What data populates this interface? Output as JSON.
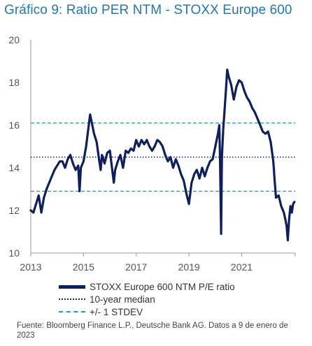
{
  "title": "Gráfico 9: Ratio PER NTM - STOXX Europe 600",
  "source_note": "Fuente: Bloomberg Finance L.P., Deutsche Bank AG. Datos a 9 de enero de 2023",
  "colors": {
    "title": "#1f77b4",
    "series": "#0e1f5b",
    "median": "#0e1f5b",
    "stdev": "#1aa3c9",
    "axis": "#999999"
  },
  "chart_data": {
    "type": "line",
    "title": "Gráfico 9: Ratio PER NTM - STOXX Europe 600",
    "xlabel": "",
    "ylabel": "",
    "xlim": [
      2013.0,
      2023.03
    ],
    "ylim": [
      10,
      20
    ],
    "x_ticks": [
      "2013",
      "2015",
      "2017",
      "2019",
      "2021"
    ],
    "y_ticks": [
      "10",
      "12",
      "14",
      "16",
      "18",
      "20"
    ],
    "grid": false,
    "legend_position": "bottom",
    "series": [
      {
        "name": "STOXX Europe 600 NTM P/E ratio",
        "style": "solid",
        "x": [
          2013.0,
          2013.1,
          2013.2,
          2013.3,
          2013.4,
          2013.5,
          2013.6,
          2013.7,
          2013.8,
          2013.9,
          2014.0,
          2014.1,
          2014.2,
          2014.3,
          2014.4,
          2014.5,
          2014.6,
          2014.7,
          2014.8,
          2014.85,
          2014.9,
          2015.0,
          2015.1,
          2015.2,
          2015.25,
          2015.3,
          2015.4,
          2015.5,
          2015.6,
          2015.65,
          2015.7,
          2015.8,
          2015.9,
          2016.0,
          2016.1,
          2016.15,
          2016.2,
          2016.3,
          2016.4,
          2016.5,
          2016.6,
          2016.7,
          2016.8,
          2016.9,
          2017.0,
          2017.1,
          2017.2,
          2017.3,
          2017.4,
          2017.5,
          2017.6,
          2017.7,
          2017.8,
          2017.9,
          2018.0,
          2018.1,
          2018.2,
          2018.3,
          2018.4,
          2018.5,
          2018.6,
          2018.7,
          2018.8,
          2018.9,
          2019.0,
          2019.1,
          2019.2,
          2019.3,
          2019.4,
          2019.5,
          2019.6,
          2019.7,
          2019.8,
          2019.9,
          2020.0,
          2020.1,
          2020.15,
          2020.18,
          2020.22,
          2020.25,
          2020.3,
          2020.35,
          2020.4,
          2020.45,
          2020.5,
          2020.6,
          2020.7,
          2020.8,
          2020.9,
          2021.0,
          2021.1,
          2021.2,
          2021.3,
          2021.4,
          2021.5,
          2021.6,
          2021.7,
          2021.8,
          2021.9,
          2022.0,
          2022.1,
          2022.2,
          2022.25,
          2022.3,
          2022.4,
          2022.5,
          2022.6,
          2022.7,
          2022.75,
          2022.8,
          2022.85,
          2022.9,
          2022.95,
          2023.0
        ],
        "y": [
          12.0,
          11.9,
          12.3,
          12.7,
          11.9,
          12.6,
          13.0,
          13.3,
          13.6,
          13.9,
          14.1,
          14.3,
          14.3,
          14.0,
          14.4,
          14.6,
          14.2,
          13.9,
          14.1,
          12.9,
          14.0,
          14.3,
          15.0,
          16.0,
          16.5,
          16.2,
          15.6,
          15.2,
          14.3,
          13.9,
          14.6,
          14.2,
          14.7,
          14.8,
          13.8,
          13.3,
          13.9,
          14.3,
          14.6,
          14.0,
          14.8,
          14.7,
          14.9,
          14.8,
          15.3,
          15.0,
          15.3,
          15.1,
          15.3,
          15.0,
          14.8,
          15.0,
          15.3,
          15.2,
          15.0,
          14.6,
          14.3,
          14.5,
          14.0,
          14.4,
          14.1,
          13.7,
          13.4,
          12.8,
          12.3,
          13.3,
          13.7,
          13.9,
          13.5,
          14.0,
          13.6,
          14.0,
          14.3,
          14.4,
          15.0,
          15.6,
          16.0,
          14.3,
          10.9,
          14.5,
          15.8,
          16.7,
          17.6,
          18.6,
          18.3,
          17.9,
          17.2,
          17.8,
          18.1,
          18.0,
          17.6,
          17.3,
          17.1,
          16.8,
          16.6,
          16.3,
          16.0,
          15.7,
          15.6,
          15.7,
          15.2,
          14.3,
          13.4,
          12.6,
          12.7,
          12.2,
          11.9,
          11.3,
          10.6,
          11.6,
          12.2,
          11.9,
          12.3,
          12.4
        ]
      },
      {
        "name": "10-year median",
        "style": "dotted",
        "value": 14.5
      },
      {
        "name": "+/- 1 STDEV",
        "style": "dashed",
        "values": [
          12.9,
          16.1
        ]
      }
    ]
  }
}
